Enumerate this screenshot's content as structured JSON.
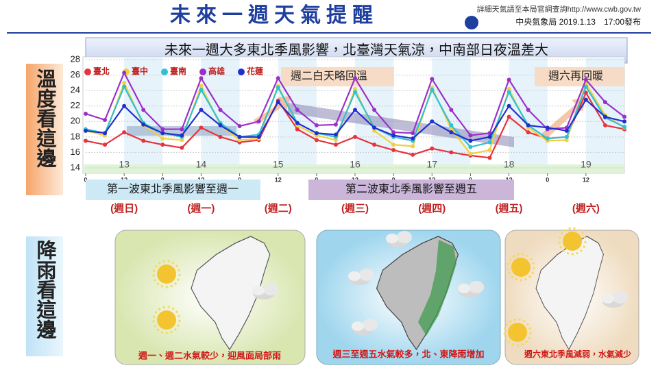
{
  "header": {
    "title": "未來一週天氣提醒",
    "website": "詳細天氣請至本局官網查詢http://www.cwb.gov.tw",
    "issuer": "中央氣象局 2019.1.13　17:00發布"
  },
  "banner": "未來一週大多東北季風影響，北臺灣天氣涼，中南部日夜溫差大",
  "side_labels": [
    "溫度看這邊",
    "降雨看這邊"
  ],
  "chart_data": {
    "type": "line",
    "x": [
      0,
      6,
      12,
      18,
      24,
      30,
      36,
      42,
      48,
      54,
      60,
      66,
      72,
      78,
      84,
      90,
      96,
      102,
      108,
      114,
      120,
      126,
      132,
      138,
      144,
      150,
      156,
      162,
      168
    ],
    "series": [
      {
        "name": "臺北",
        "color": "#e8323c",
        "values": [
          17.5,
          17.0,
          18.6,
          17.5,
          17.0,
          16.6,
          19.2,
          18.0,
          17.3,
          17.6,
          22.7,
          19.0,
          17.6,
          17.0,
          18.0,
          17.0,
          16.3,
          15.7,
          16.5,
          16.0,
          15.6,
          15.3,
          20.6,
          18.6,
          17.8,
          18.0,
          23.7,
          19.5,
          19.0
        ]
      },
      {
        "name": "臺中",
        "color": "#f0d040",
        "values": [
          18.8,
          18.2,
          25.0,
          19.5,
          17.8,
          17.6,
          24.6,
          19.5,
          17.6,
          17.8,
          24.6,
          19.5,
          18.2,
          17.6,
          24.2,
          18.8,
          17.0,
          16.8,
          24.4,
          19.0,
          15.8,
          16.3,
          24.2,
          19.2,
          17.5,
          17.6,
          24.9,
          20.8,
          19.2
        ]
      },
      {
        "name": "臺南",
        "color": "#30c0d0",
        "values": [
          19.0,
          18.5,
          24.5,
          19.8,
          18.5,
          18.0,
          24.1,
          19.8,
          18.0,
          18.3,
          24.4,
          19.8,
          18.5,
          18.0,
          23.8,
          19.2,
          18.0,
          17.5,
          24.1,
          19.5,
          16.7,
          17.3,
          23.8,
          19.5,
          17.8,
          18.0,
          24.5,
          20.5,
          19.3
        ]
      },
      {
        "name": "高雄",
        "color": "#9b30c8",
        "values": [
          21.0,
          20.2,
          26.3,
          21.5,
          19.0,
          19.0,
          25.6,
          21.5,
          19.4,
          20.0,
          25.6,
          21.5,
          19.5,
          19.6,
          25.6,
          21.5,
          18.6,
          18.5,
          25.5,
          21.5,
          18.2,
          18.5,
          25.4,
          21.5,
          19.0,
          19.2,
          25.4,
          22.5,
          20.6
        ]
      },
      {
        "name": "花蓮",
        "color": "#2030d0",
        "values": [
          18.8,
          18.5,
          22.0,
          19.6,
          18.5,
          18.2,
          21.5,
          19.5,
          18.0,
          18.0,
          22.5,
          19.8,
          18.5,
          18.3,
          21.5,
          19.2,
          18.2,
          17.8,
          20.0,
          18.6,
          17.5,
          18.0,
          22.0,
          19.5,
          19.2,
          18.8,
          22.8,
          20.6,
          20.0
        ]
      }
    ],
    "xlim": [
      0,
      168
    ],
    "ylim": [
      14,
      28
    ],
    "yticks": [
      14,
      16,
      18,
      20,
      22,
      24,
      26,
      28
    ],
    "xticks": [
      {
        "value": 0,
        "label": "0"
      },
      {
        "value": 12,
        "label": "12"
      },
      {
        "value": 24,
        "label": "0"
      },
      {
        "value": 36,
        "label": "12"
      },
      {
        "value": 48,
        "label": "0"
      },
      {
        "value": 60,
        "label": "12"
      },
      {
        "value": 72,
        "label": "0"
      },
      {
        "value": 84,
        "label": "12"
      },
      {
        "value": 96,
        "label": "0"
      },
      {
        "value": 108,
        "label": "12"
      },
      {
        "value": 120,
        "label": "0"
      },
      {
        "value": 132,
        "label": "12"
      },
      {
        "value": 144,
        "label": "0"
      },
      {
        "value": 156,
        "label": "12"
      }
    ],
    "grid": true,
    "days": [
      "13",
      "14",
      "15",
      "16",
      "17",
      "18",
      "19"
    ],
    "weekdays": [
      "(週日)",
      "(週一)",
      "(週二)",
      "(週三)",
      "(週四)",
      "(週五)",
      "(週六)"
    ],
    "annotations": [
      "週二白天略回溫",
      "週六再回暖"
    ],
    "wave_labels": [
      "第一波東北季風影響至週一",
      "第二波東北季風影響至週五"
    ]
  },
  "rain_maps": [
    "週一、週二水氣較少，迎風面局部雨",
    "週三至週五水氣較多，北、東降雨增加",
    "週六東北季風減弱，水氣減少"
  ]
}
